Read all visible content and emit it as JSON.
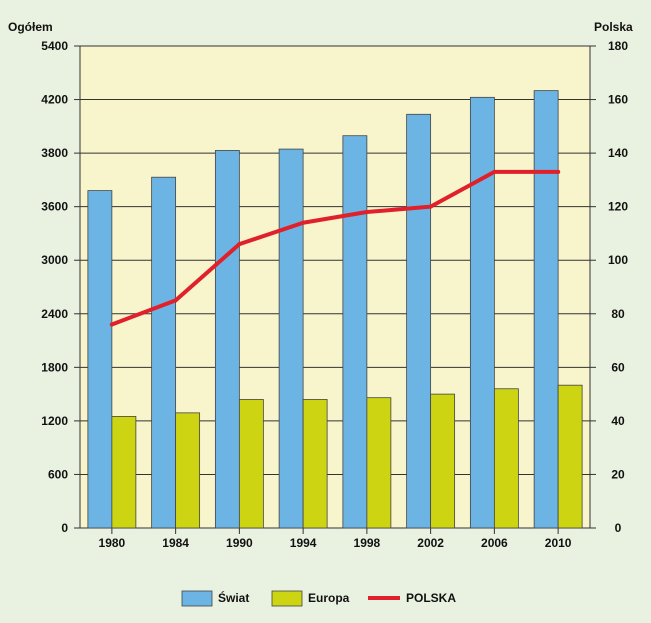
{
  "chart_data": {
    "type": "bar",
    "categories": [
      "1980",
      "1984",
      "1990",
      "1994",
      "1998",
      "2002",
      "2006",
      "2010"
    ],
    "series": [
      {
        "name": "Świat",
        "kind": "bar",
        "axis": "left",
        "color": "#6cb4e4",
        "values": [
          3660,
          3710,
          3820,
          3830,
          3930,
          4090,
          4250,
          4400
        ]
      },
      {
        "name": "Europa",
        "kind": "bar",
        "axis": "left",
        "color": "#cdd412",
        "values": [
          1250,
          1290,
          1440,
          1440,
          1460,
          1500,
          1560,
          1600
        ]
      },
      {
        "name": "POLSKA",
        "kind": "line",
        "axis": "right",
        "color": "#e0202a",
        "values": [
          76,
          85,
          106,
          114,
          118,
          120,
          133,
          133
        ]
      }
    ],
    "left_axis": {
      "label": "Ogółem",
      "ticks": [
        "0",
        "600",
        "1200",
        "1800",
        "2400",
        "3000",
        "3600",
        "3800",
        "4200",
        "5400"
      ],
      "tick_values": [
        0,
        600,
        1200,
        1800,
        2400,
        3000,
        3600,
        3800,
        4200,
        5400
      ]
    },
    "right_axis": {
      "label": "Polska",
      "ticks": [
        "0",
        "20",
        "40",
        "60",
        "80",
        "100",
        "120",
        "140",
        "160",
        "180"
      ],
      "tick_values": [
        0,
        20,
        40,
        60,
        80,
        100,
        120,
        140,
        160,
        180
      ]
    },
    "grid": true,
    "legend_position": "bottom",
    "colors": {
      "plot_background": "#f8f4cc",
      "page_background": "#e9f1e0"
    }
  }
}
